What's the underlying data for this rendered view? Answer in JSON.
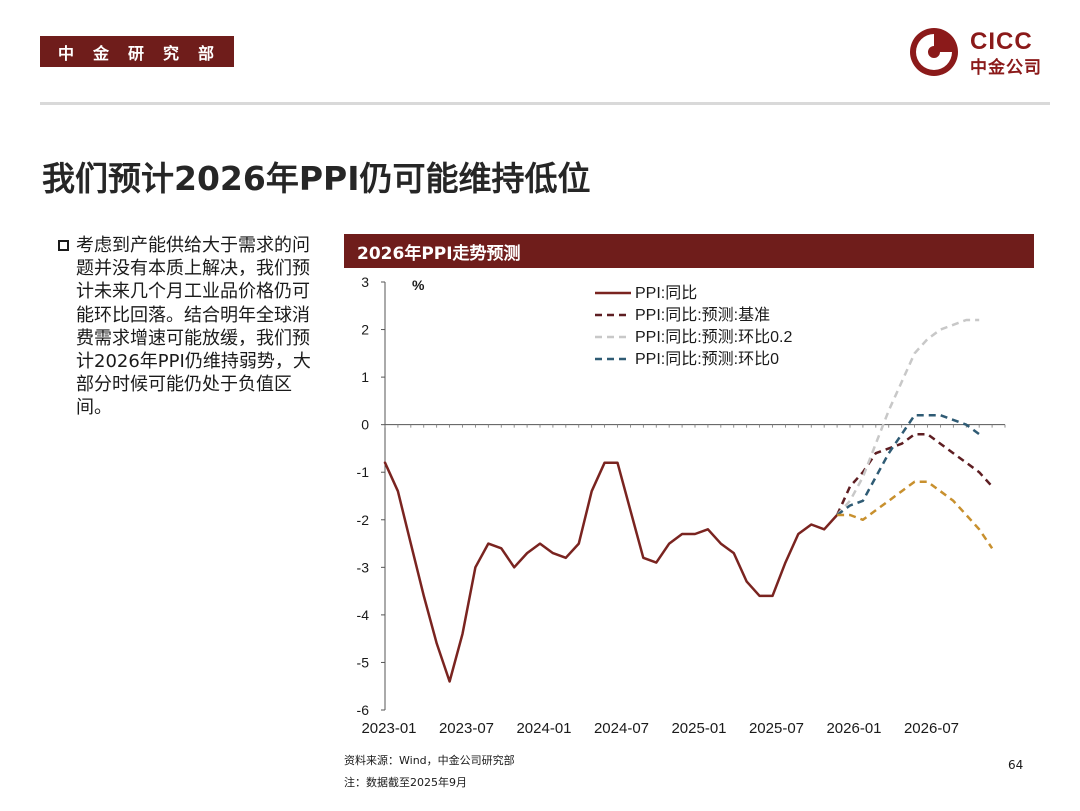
{
  "header": {
    "department": "中金研究部",
    "logo_en": "CICC",
    "logo_cn": "中金公司"
  },
  "page": {
    "title": "我们预计2026年PPI仍可能维持低位",
    "body_text": "考虑到产能供给大于需求的问题并没有本质上解决，我们预计未来几个月工业品价格仍可能环比回落。结合明年全球消费需求增速可能放缓，我们预计2026年PPI仍维持弱势，大部分时候可能仍处于负值区间。",
    "chart_header": "2026年PPI走势预测",
    "source": "资料来源：Wind，中金公司研究部",
    "note": "注：数据截至2025年9月",
    "page_number": "64"
  },
  "colors": {
    "brand": "#6f1d1b",
    "actual": "#7a2420",
    "baseline": "#5e1e22",
    "mom_02": "#c8c8c8",
    "mom_0": "#2f5b74",
    "lower": "#c8902e"
  },
  "chart_data": {
    "type": "line",
    "title": "2026年PPI走势预测",
    "unit_label": "%",
    "xlabel": "",
    "ylabel": "%",
    "ylim": [
      -6,
      3
    ],
    "yticks": [
      3,
      2,
      1,
      0,
      -1,
      -2,
      -3,
      -4,
      -5,
      -6
    ],
    "x_tick_labels": [
      "2023-01",
      "2023-07",
      "2024-01",
      "2024-07",
      "2025-01",
      "2025-07",
      "2026-01",
      "2026-07"
    ],
    "x_tick_index": [
      0,
      6,
      12,
      18,
      24,
      30,
      36,
      42
    ],
    "x_count": 48,
    "legend_position": "top-right",
    "series": [
      {
        "name": "PPI:同比",
        "style": "solid",
        "color": "#7a2420",
        "start_index": 0,
        "values": [
          -0.8,
          -1.4,
          -2.5,
          -3.6,
          -4.6,
          -5.4,
          -4.4,
          -3.0,
          -2.5,
          -2.6,
          -3.0,
          -2.7,
          -2.5,
          -2.7,
          -2.8,
          -2.5,
          -1.4,
          -0.8,
          -0.8,
          -1.8,
          -2.8,
          -2.9,
          -2.5,
          -2.3,
          -2.3,
          -2.2,
          -2.5,
          -2.7,
          -3.3,
          -3.6,
          -3.6,
          -2.9,
          -2.3,
          -2.1,
          -2.2,
          -1.9
        ]
      },
      {
        "name": "PPI:同比:预测:基准",
        "style": "dashed",
        "color": "#5e1e22",
        "start_index": 35,
        "values": [
          -1.9,
          -1.3,
          -1.0,
          -0.6,
          -0.5,
          -0.4,
          -0.2,
          -0.2,
          -0.4,
          -0.6,
          -0.8,
          -1.0,
          -1.3
        ],
        "legend": true
      },
      {
        "name": "PPI:同比:预测:环比0.2",
        "style": "dashed",
        "color": "#c8c8c8",
        "start_index": 35,
        "values": [
          -1.9,
          -1.6,
          -1.1,
          -0.4,
          0.3,
          0.9,
          1.5,
          1.8,
          2.0,
          2.1,
          2.2,
          2.2
        ],
        "legend": true
      },
      {
        "name": "PPI:同比:预测:环比0",
        "style": "dashed",
        "color": "#2f5b74",
        "start_index": 35,
        "values": [
          -1.9,
          -1.7,
          -1.6,
          -1.1,
          -0.6,
          -0.2,
          0.2,
          0.2,
          0.2,
          0.1,
          0.0,
          -0.2
        ],
        "legend": true
      },
      {
        "name": "",
        "style": "dashed",
        "color": "#c8902e",
        "start_index": 35,
        "values": [
          -1.9,
          -1.9,
          -2.0,
          -1.8,
          -1.6,
          -1.4,
          -1.2,
          -1.2,
          -1.4,
          -1.6,
          -1.9,
          -2.2,
          -2.6
        ],
        "legend": false
      }
    ]
  }
}
